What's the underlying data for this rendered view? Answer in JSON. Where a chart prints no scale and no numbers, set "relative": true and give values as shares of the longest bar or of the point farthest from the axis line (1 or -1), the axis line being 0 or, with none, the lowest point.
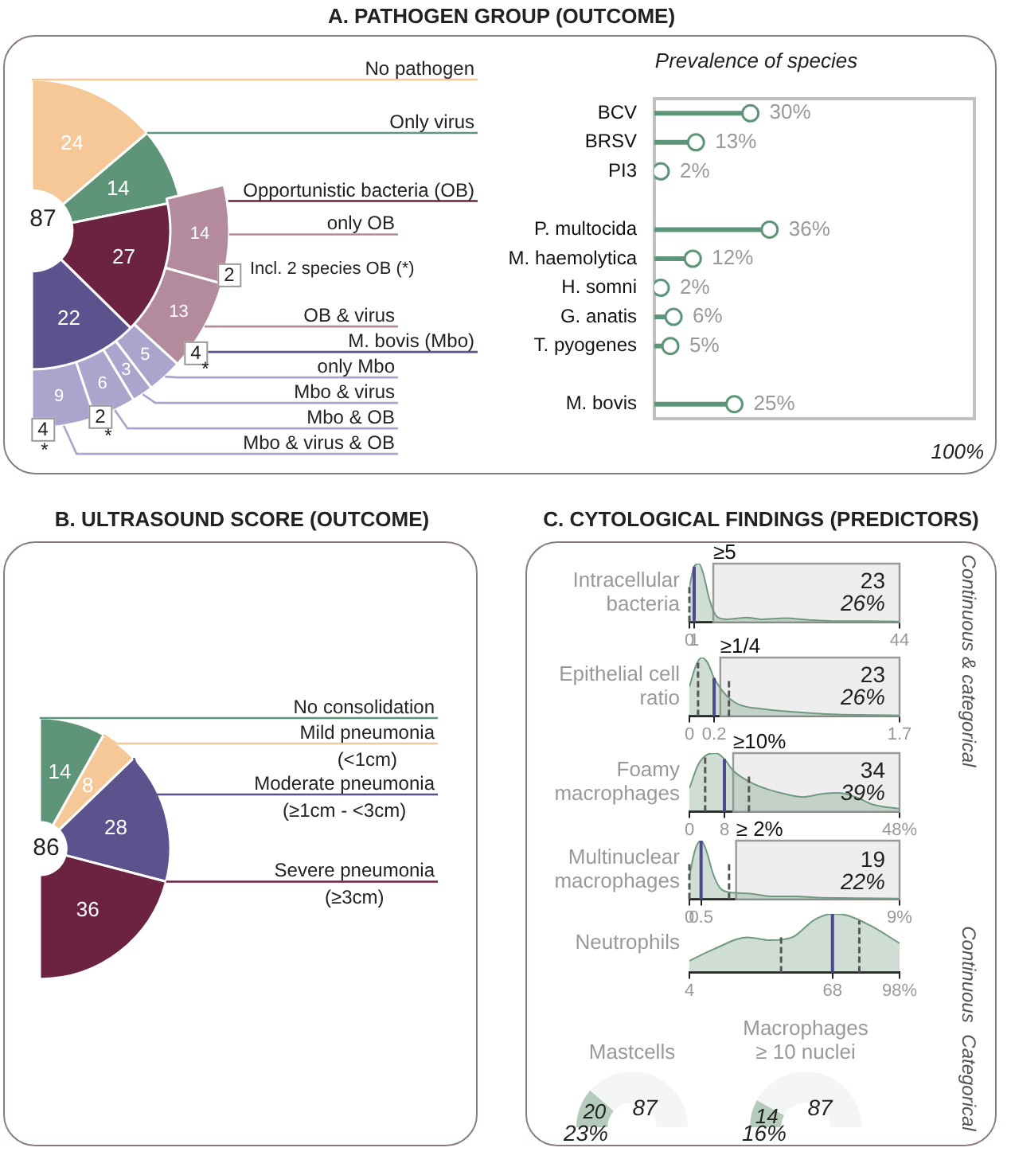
{
  "chart_data": [
    {
      "type": "donut",
      "title": "A. PATHOGEN GROUP (OUTCOME)",
      "categories": [
        "No pathogen",
        "Only virus",
        "Opportunistic bacteria (OB)",
        "M. bovis (Mbo)"
      ],
      "values": [
        24,
        14,
        27,
        22
      ],
      "colors": [
        "#f7c897",
        "#5e9578",
        "#6c2342",
        "#5c528e"
      ],
      "data_labels": true,
      "annotations": [
        "87"
      ]
    },
    {
      "type": "donut",
      "categories": [
        "only OB",
        "OB & virus",
        "only Mbo",
        "Mbo & virus",
        "Mbo & OB",
        "Mbo & virus & OB"
      ],
      "values": [
        14,
        13,
        5,
        3,
        6,
        9
      ],
      "colors": [
        "#b38b9c",
        "#b38b9c",
        "#a9a5cc",
        "#a9a5cc",
        "#a9a5cc",
        "#a9a5cc"
      ],
      "data_labels": true,
      "annotations": [
        "2",
        "Incl. 2 species OB (*)",
        "4",
        "2",
        "4",
        "*",
        "*",
        "*"
      ]
    },
    {
      "type": "lollipop",
      "title": "Prevalence of species",
      "orientation": "horizontal",
      "categories": [
        "BCV",
        "BRSV",
        "PI3",
        null,
        "P. multocida",
        "M. haemolytica",
        "H. somni",
        "G. anatis",
        "T. pyogenes",
        null,
        "M. bovis"
      ],
      "values": [
        30,
        13,
        2,
        null,
        36,
        12,
        2,
        6,
        5,
        null,
        25
      ],
      "color": "#5e9578",
      "marker": "circle",
      "xlim": [
        0,
        100
      ],
      "value_labels": [
        "30%",
        "13%",
        "2%",
        null,
        "36%",
        "12%",
        "2%",
        "6%",
        "5%",
        null,
        "25%"
      ],
      "annotations": [
        "100%"
      ]
    },
    {
      "type": "donut",
      "title": "B. ULTRASOUND SCORE (OUTCOME)",
      "categories": [
        "No consolidation",
        "Mild pneumonia (<1cm)",
        "Moderate pneumonia (≥1cm - <3cm)",
        "Severe pneumonia (≥3cm)"
      ],
      "values": [
        14,
        8,
        28,
        36
      ],
      "colors": [
        "#5e9578",
        "#f7c897",
        "#5c528e",
        "#6c2342"
      ],
      "data_labels": true,
      "annotations": [
        "86"
      ]
    },
    {
      "type": "area",
      "title": "C. CYTOLOGICAL FINDINGS (PREDICTORS)",
      "ylabel": "Intracellular bacteria",
      "relative": true,
      "color": "#6f9a80",
      "x": [
        0,
        1,
        2,
        3,
        4,
        5,
        6,
        8,
        12,
        15,
        20,
        25,
        30,
        38,
        44
      ],
      "values": [
        0.6,
        0.95,
        1,
        0.8,
        0.45,
        0.2,
        0.08,
        0.05,
        0.08,
        0.05,
        0.07,
        0.04,
        0.02,
        0.02,
        0.01
      ],
      "xlim": [
        0,
        44
      ],
      "xticks": [
        0,
        1,
        44
      ],
      "bands": [
        {
          "axis": "x",
          "from": 5,
          "to": 44,
          "label": "≥5",
          "color": "#efeeee"
        }
      ],
      "ref_lines": [
        {
          "axis": "x",
          "value": 0,
          "line_style": "dashed",
          "color": "#555555"
        },
        {
          "axis": "x",
          "value": 1,
          "line_style": "solid",
          "color": "#4b4a8c"
        }
      ],
      "annotations": [
        "23",
        "26%",
        "Continuous & categorical"
      ]
    },
    {
      "type": "area",
      "ylabel": "Epithelial cell ratio",
      "relative": true,
      "color": "#6f9a80",
      "x": [
        0,
        0.05,
        0.1,
        0.15,
        0.2,
        0.3,
        0.4,
        0.6,
        0.8,
        1,
        1.2,
        1.5,
        1.7
      ],
      "values": [
        0.5,
        0.85,
        1,
        0.9,
        0.65,
        0.35,
        0.2,
        0.12,
        0.08,
        0.05,
        0.03,
        0.02,
        0.01
      ],
      "xlim": [
        0,
        1.7
      ],
      "xticks": [
        0,
        0.2,
        1.7
      ],
      "bands": [
        {
          "axis": "x",
          "from": 0.25,
          "to": 1.7,
          "label": "≥1/4",
          "color": "#efeeee"
        }
      ],
      "ref_lines": [
        {
          "axis": "x",
          "value": 0.07,
          "line_style": "dashed",
          "color": "#555555"
        },
        {
          "axis": "x",
          "value": 0.2,
          "line_style": "solid",
          "color": "#4b4a8c"
        },
        {
          "axis": "x",
          "value": 0.32,
          "line_style": "dashed",
          "color": "#555555"
        }
      ],
      "annotations": [
        "23",
        "26%"
      ]
    },
    {
      "type": "area",
      "ylabel": "Foamy macrophages",
      "relative": true,
      "color": "#6f9a80",
      "x": [
        0,
        2,
        4,
        6,
        8,
        10,
        14,
        18,
        22,
        26,
        30,
        34,
        38,
        42,
        48
      ],
      "values": [
        0.4,
        0.8,
        0.97,
        1,
        0.9,
        0.7,
        0.5,
        0.38,
        0.3,
        0.25,
        0.3,
        0.32,
        0.25,
        0.12,
        0.05
      ],
      "xlim": [
        0,
        48
      ],
      "xticks": [
        0,
        8,
        {
          "value": 48,
          "label": "48%"
        }
      ],
      "bands": [
        {
          "axis": "x",
          "from": 10,
          "to": 48,
          "label": "≥10%",
          "color": "#efeeee"
        }
      ],
      "ref_lines": [
        {
          "axis": "x",
          "value": 3.6,
          "line_style": "dashed",
          "color": "#555555"
        },
        {
          "axis": "x",
          "value": 8,
          "line_style": "solid",
          "color": "#4b4a8c"
        },
        {
          "axis": "x",
          "value": 13.6,
          "line_style": "dashed",
          "color": "#555555"
        }
      ],
      "annotations": [
        "34",
        "39%"
      ]
    },
    {
      "type": "area",
      "ylabel": "Multinuclear macrophages",
      "relative": true,
      "color": "#6f9a80",
      "x": [
        0,
        0.25,
        0.5,
        0.75,
        1,
        1.3,
        1.7,
        2.5,
        3.5,
        4.5,
        5.5,
        7,
        9
      ],
      "values": [
        0.4,
        0.85,
        1,
        0.8,
        0.45,
        0.2,
        0.12,
        0.1,
        0.05,
        0.05,
        0.03,
        0.02,
        0.01
      ],
      "xlim": [
        0,
        9
      ],
      "xticks": [
        0,
        0.5,
        {
          "value": 9,
          "label": "9%"
        }
      ],
      "bands": [
        {
          "axis": "x",
          "from": 2,
          "to": 9,
          "label": "≥ 2%",
          "color": "#efeeee"
        }
      ],
      "ref_lines": [
        {
          "axis": "x",
          "value": 0,
          "line_style": "dashed",
          "color": "#555555"
        },
        {
          "axis": "x",
          "value": 0.5,
          "line_style": "solid",
          "color": "#4b4a8c"
        },
        {
          "axis": "x",
          "value": 1.7,
          "line_style": "dashed",
          "color": "#555555"
        }
      ],
      "annotations": [
        "19",
        "22%"
      ]
    },
    {
      "type": "area",
      "ylabel": "Neutrophils",
      "relative": true,
      "color": "#6f9a80",
      "x": [
        4,
        15,
        30,
        40,
        50,
        60,
        68,
        75,
        85,
        98
      ],
      "values": [
        0.2,
        0.4,
        0.6,
        0.55,
        0.6,
        0.9,
        1,
        0.97,
        0.8,
        0.5
      ],
      "xlim": [
        4,
        98
      ],
      "xticks": [
        4,
        68,
        {
          "value": 98,
          "label": "98%"
        }
      ],
      "ref_lines": [
        {
          "axis": "x",
          "value": 45,
          "line_style": "dashed",
          "color": "#555555"
        },
        {
          "axis": "x",
          "value": 68,
          "line_style": "solid",
          "color": "#4b4a8c"
        },
        {
          "axis": "x",
          "value": 80,
          "line_style": "dashed",
          "color": "#555555"
        }
      ],
      "annotations": [
        "Continuous"
      ]
    },
    {
      "type": "donut",
      "title": "Mastcells",
      "categories": [
        null,
        null
      ],
      "values": [
        20,
        67
      ],
      "colors": [
        "#b5ccbd",
        "#f3f6f4"
      ],
      "value_labels": [
        "20",
        null
      ],
      "annotations": [
        "87",
        "23%",
        "Categorical"
      ]
    },
    {
      "type": "donut",
      "title": "Macrophages ≥ 10 nuclei",
      "categories": [
        null,
        null
      ],
      "values": [
        14,
        73
      ],
      "colors": [
        "#b5ccbd",
        "#f3f6f4"
      ],
      "value_labels": [
        "14",
        null
      ],
      "annotations": [
        "87",
        "16%"
      ]
    }
  ]
}
